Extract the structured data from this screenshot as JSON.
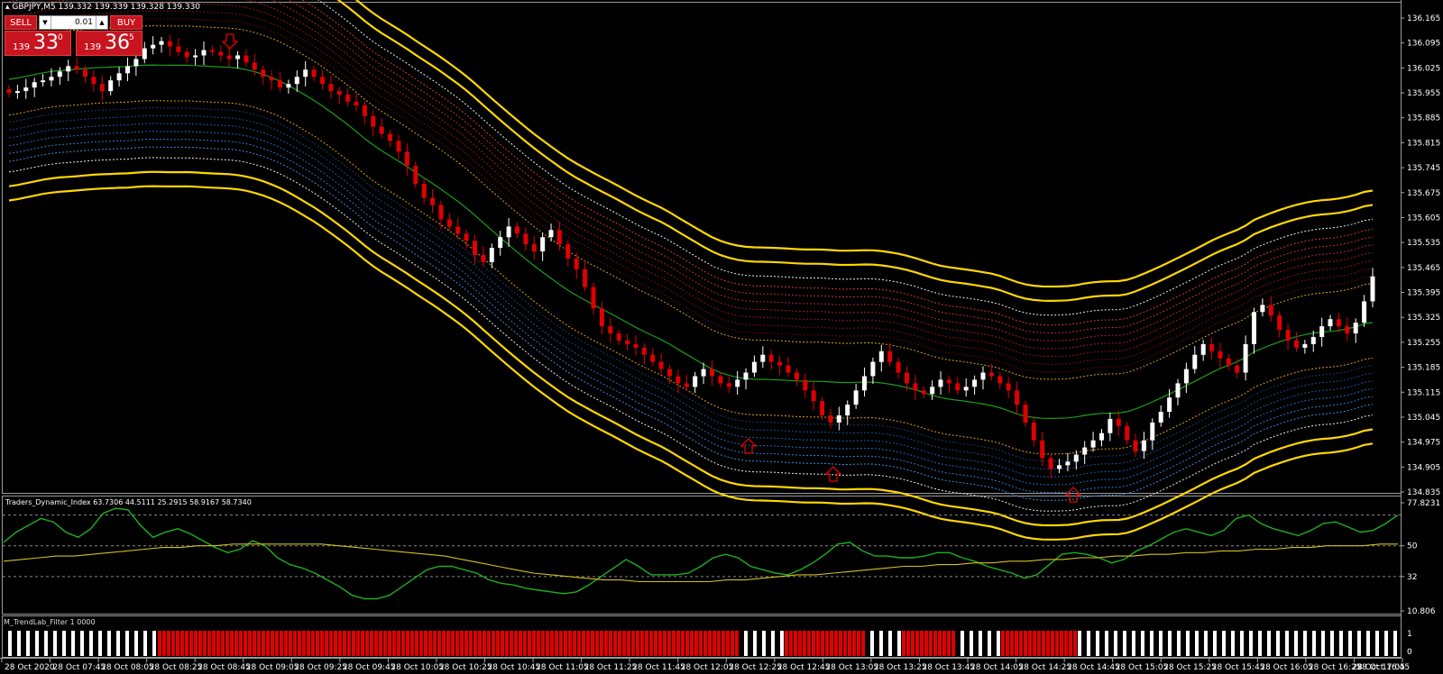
{
  "symbol_info": "GBPJPY,M5  139.332 139.339 139.328 139.330",
  "trade_panel": {
    "sell_label": "SELL",
    "buy_label": "BUY",
    "lot": "0.01",
    "sell_small": "139",
    "sell_big": "33",
    "sell_sup": "0",
    "buy_small": "139",
    "buy_big": "36",
    "buy_sup": "5"
  },
  "indicator_label": "Traders_Dynamic_Index 63.7306 44.5111 25.2915 58.9167 58.7340",
  "filter_label": "M_TrendLab_Filter 1 0000",
  "price_axis": [
    "136.165",
    "136.095",
    "136.025",
    "135.955",
    "135.885",
    "135.815",
    "135.745",
    "135.675",
    "135.605",
    "135.535",
    "135.465",
    "135.395",
    "135.325",
    "135.255",
    "135.185",
    "135.115",
    "135.045",
    "134.975",
    "134.905",
    "134.835"
  ],
  "indicator_axis": [
    "77.8231",
    "50",
    "32",
    "10.806"
  ],
  "filter_axis": [
    "1",
    "0"
  ],
  "time_axis": [
    "28 Oct 2020",
    "28 Oct 07:45",
    "28 Oct 08:05",
    "28 Oct 08:25",
    "28 Oct 08:45",
    "28 Oct 09:05",
    "28 Oct 09:25",
    "28 Oct 09:45",
    "28 Oct 10:05",
    "28 Oct 10:25",
    "28 Oct 10:45",
    "28 Oct 11:05",
    "28 Oct 11:25",
    "28 Oct 11:45",
    "28 Oct 12:05",
    "28 Oct 12:25",
    "28 Oct 12:45",
    "28 Oct 13:05",
    "28 Oct 13:25",
    "28 Oct 13:45",
    "28 Oct 14:05",
    "28 Oct 14:25",
    "28 Oct 14:45",
    "28 Oct 15:05",
    "28 Oct 15:25",
    "28 Oct 15:45",
    "28 Oct 16:05",
    "28 Oct 16:25",
    "28 Oct 16:45",
    "28 Oct 17:05"
  ],
  "colors": {
    "background": "#000000",
    "bull": "#ffffff",
    "bear": "#e00000",
    "band_outer": "#ffd700",
    "mid_line": "#1a9e1a",
    "rsi_line": "#1fae1f",
    "signal_line": "#d4c020",
    "grid": "#cfcfcf"
  },
  "chart_data": [
    {
      "type": "candlestick",
      "symbol": "GBPJPY",
      "timeframe": "M5",
      "ylim": [
        134.835,
        136.165
      ],
      "close": [
        135.955,
        135.96,
        135.97,
        135.985,
        135.99,
        136.0,
        136.015,
        136.03,
        136.02,
        136.0,
        135.98,
        135.96,
        135.99,
        136.01,
        136.03,
        136.05,
        136.08,
        136.09,
        136.1,
        136.085,
        136.07,
        136.055,
        136.06,
        136.075,
        136.07,
        136.06,
        136.05,
        136.06,
        136.04,
        136.02,
        136.0,
        135.99,
        135.97,
        135.98,
        136.0,
        136.02,
        136.0,
        135.98,
        135.96,
        135.95,
        135.93,
        135.92,
        135.89,
        135.86,
        135.84,
        135.82,
        135.79,
        135.75,
        135.7,
        135.66,
        135.64,
        135.6,
        135.58,
        135.56,
        135.54,
        135.5,
        135.48,
        135.52,
        135.55,
        135.58,
        135.56,
        135.53,
        135.51,
        135.55,
        135.57,
        135.53,
        135.49,
        135.46,
        135.41,
        135.35,
        135.3,
        135.28,
        135.26,
        135.25,
        135.24,
        135.22,
        135.2,
        135.18,
        135.16,
        135.14,
        135.13,
        135.16,
        135.18,
        135.16,
        135.14,
        135.13,
        135.15,
        135.17,
        135.2,
        135.22,
        135.2,
        135.19,
        135.17,
        135.15,
        135.12,
        135.09,
        135.05,
        135.03,
        135.05,
        135.08,
        135.12,
        135.16,
        135.2,
        135.23,
        135.2,
        135.17,
        135.14,
        135.12,
        135.11,
        135.13,
        135.15,
        135.14,
        135.12,
        135.13,
        135.15,
        135.17,
        135.16,
        135.14,
        135.12,
        135.08,
        135.03,
        134.98,
        134.93,
        134.9,
        134.91,
        134.92,
        134.94,
        134.96,
        134.98,
        135.0,
        135.04,
        135.02,
        134.98,
        134.95,
        134.98,
        135.03,
        135.06,
        135.1,
        135.14,
        135.18,
        135.22,
        135.25,
        135.23,
        135.21,
        135.19,
        135.17,
        135.25,
        135.34,
        135.36,
        135.33,
        135.29,
        135.26,
        135.24,
        135.25,
        135.27,
        135.3,
        135.32,
        135.3,
        135.28,
        135.31,
        135.37,
        135.44
      ]
    },
    {
      "type": "line",
      "name": "Traders_Dynamic_Index",
      "ylim": [
        10.806,
        77.8231
      ],
      "levels": [
        68,
        50,
        32
      ],
      "series": [
        {
          "values": [
            52,
            58,
            62,
            66,
            64,
            58,
            55,
            60,
            69,
            72,
            71,
            62,
            55,
            58,
            60,
            57,
            53,
            49,
            46,
            48,
            53,
            50,
            43,
            39,
            37,
            34,
            30,
            26,
            21,
            19,
            19,
            21,
            26,
            31,
            36,
            38,
            38,
            36,
            34,
            30,
            28,
            27,
            25,
            24,
            23,
            22,
            23,
            27,
            32,
            37,
            42,
            38,
            33,
            33,
            33,
            34,
            38,
            43,
            45,
            43,
            38,
            36,
            34,
            33,
            36,
            40,
            45,
            51,
            52,
            47,
            44,
            44,
            43,
            43,
            44,
            46,
            46,
            43,
            41,
            38,
            36,
            34,
            31,
            33,
            39,
            45,
            46,
            45,
            43,
            40,
            42,
            47,
            50,
            54,
            58,
            60,
            58,
            56,
            59,
            66,
            68,
            63,
            60,
            58,
            56,
            59,
            63,
            64,
            61,
            58,
            59,
            63,
            68
          ]
        },
        {
          "values": [
            41,
            42,
            43,
            44,
            44,
            45,
            46,
            47,
            48,
            49,
            49,
            50,
            50,
            51,
            51,
            51,
            51,
            51,
            51,
            50,
            49,
            48,
            47,
            46,
            45,
            44,
            42,
            40,
            38,
            36,
            34,
            33,
            32,
            31,
            30,
            30,
            29,
            29,
            29,
            29,
            29,
            30,
            30,
            31,
            32,
            33,
            33,
            34,
            35,
            36,
            37,
            38,
            38,
            39,
            39,
            40,
            40,
            41,
            41,
            42,
            42,
            43,
            43,
            44,
            44,
            45,
            45,
            46,
            46,
            47,
            47,
            48,
            48,
            49,
            49,
            50,
            50,
            50,
            51,
            51
          ]
        }
      ]
    }
  ]
}
